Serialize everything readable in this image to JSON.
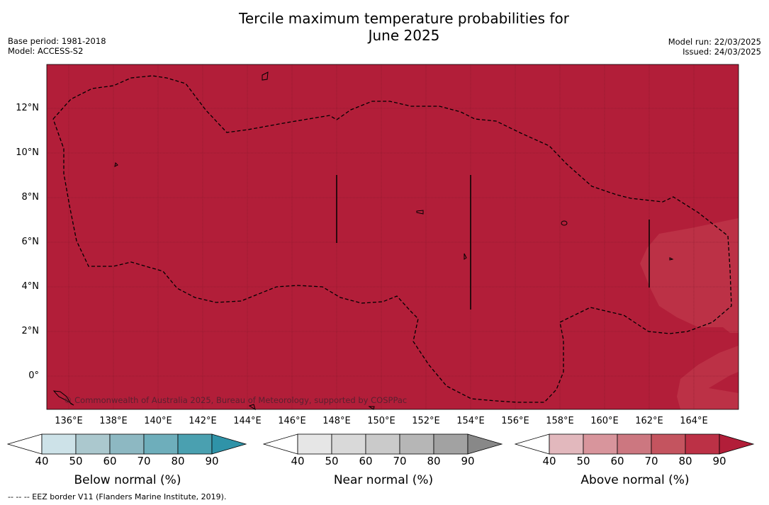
{
  "header": {
    "title_line1": "Tercile maximum temperature probabilities for",
    "title_line2": "June 2025",
    "base_period": "Base period: 1981-2018",
    "model": "Model: ACCESS-S2",
    "model_run": "Model run: 22/03/2025",
    "issued": "Issued: 24/03/2025"
  },
  "map": {
    "lat_labels": [
      "12°N",
      "10°N",
      "8°N",
      "6°N",
      "4°N",
      "2°N",
      "0°"
    ],
    "lon_labels": [
      "136°E",
      "138°E",
      "140°E",
      "142°E",
      "144°E",
      "146°E",
      "148°E",
      "150°E",
      "152°E",
      "154°E",
      "156°E",
      "158°E",
      "160°E",
      "162°E",
      "164°E"
    ],
    "copyright": "© Commonwealth of Australia 2025, Bureau of Meteorology, supported by COSPPac",
    "colors": {
      "above_90": "#b21e39",
      "above_80": "#bc3146",
      "grid": "#7a1426",
      "coast": "#000000"
    }
  },
  "legends": [
    {
      "title": "Below normal (%)",
      "ticks": [
        "40",
        "50",
        "60",
        "70",
        "80",
        "90"
      ],
      "colors": [
        "#ffffff",
        "#cde2e8",
        "#abc8ce",
        "#8db8c2",
        "#6eaebb",
        "#4aa0b0",
        "#2f93a8"
      ]
    },
    {
      "title": "Near normal (%)",
      "ticks": [
        "40",
        "50",
        "60",
        "70",
        "80",
        "90"
      ],
      "colors": [
        "#ffffff",
        "#e6e6e6",
        "#d9d9d9",
        "#cacaca",
        "#b6b6b6",
        "#a2a2a2",
        "#888888"
      ]
    },
    {
      "title": "Above normal (%)",
      "ticks": [
        "40",
        "50",
        "60",
        "70",
        "80",
        "90"
      ],
      "colors": [
        "#ffffff",
        "#e2b8bd",
        "#d8959c",
        "#cc7780",
        "#c4545f",
        "#bc3146",
        "#b21e39"
      ]
    }
  ],
  "footnote": "--  --  -- EEZ border V11 (Flanders Marine Institute, 2019)."
}
